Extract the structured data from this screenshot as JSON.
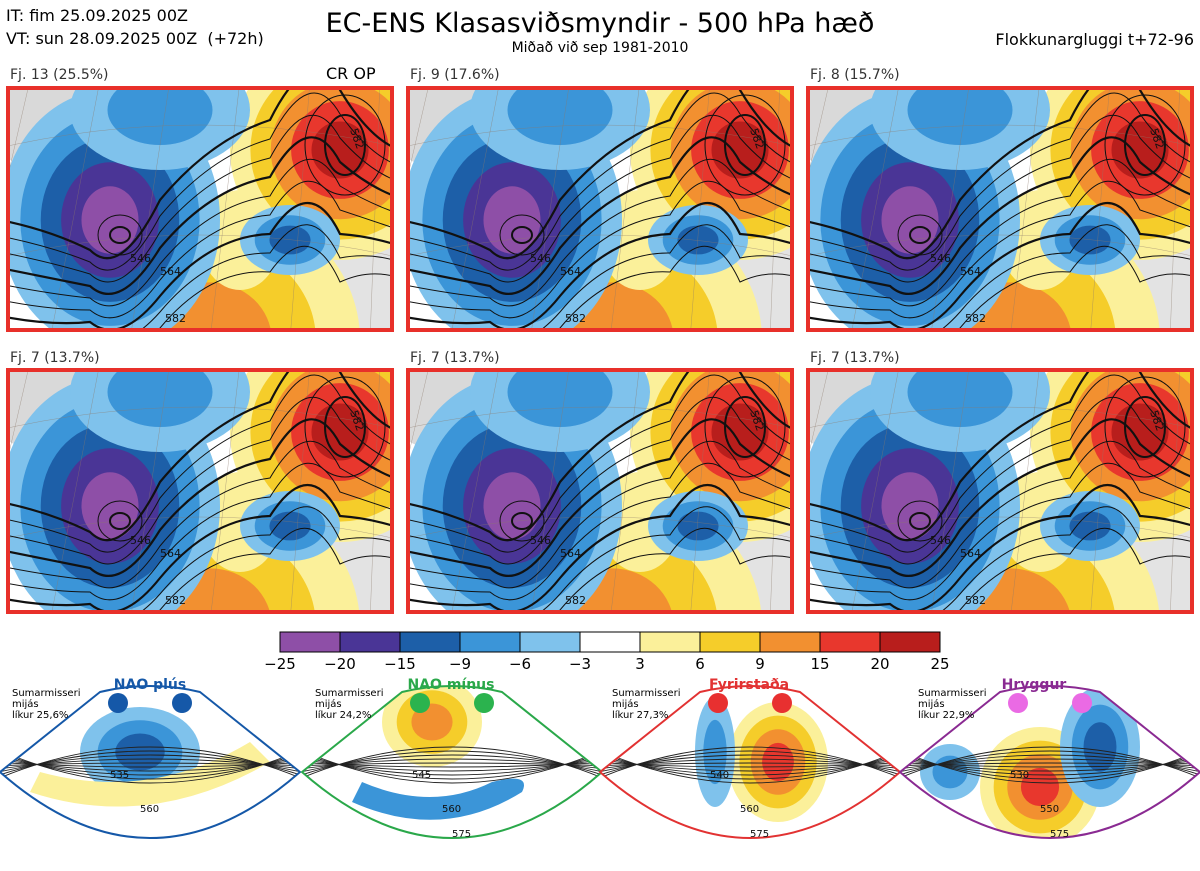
{
  "header": {
    "it_line": "IT: fim 25.09.2025 00Z",
    "vt_line": "VT: sun 28.09.2025 00Z  (+72h)",
    "title": "EC-ENS Klasasviðsmyndir - 500 hPa hæð",
    "subtitle": "Miðað við sep 1981-2010",
    "window": "Flokkunargluggi t+72-96"
  },
  "chart_data": {
    "type": "heatmap",
    "title": "EC-ENS Klasasviðsmyndir - 500 hPa hæð",
    "clusters": [
      {
        "label": "Fj. 13 (25.5%)",
        "members": 13,
        "percent": 25.5,
        "badge": "CR OP",
        "contours": [
          "546",
          "564",
          "582"
        ],
        "highs": [
          "582"
        ]
      },
      {
        "label": "Fj. 9 (17.6%)",
        "members": 9,
        "percent": 17.6,
        "badge": "",
        "contours": [
          "546",
          "564",
          "582"
        ],
        "highs": [
          "582"
        ]
      },
      {
        "label": "Fj. 8 (15.7%)",
        "members": 8,
        "percent": 15.7,
        "badge": "",
        "contours": [
          "546",
          "564",
          "582"
        ],
        "highs": [
          "582"
        ]
      },
      {
        "label": "Fj. 7 (13.7%)",
        "members": 7,
        "percent": 13.7,
        "badge": "",
        "contours": [
          "546",
          "564",
          "582"
        ],
        "highs": [
          "582"
        ]
      },
      {
        "label": "Fj. 7 (13.7%)",
        "members": 7,
        "percent": 13.7,
        "badge": "",
        "contours": [
          "546",
          "564",
          "582"
        ],
        "highs": [
          "582"
        ]
      },
      {
        "label": "Fj. 7 (13.7%)",
        "members": 7,
        "percent": 13.7,
        "badge": "",
        "contours": [
          "546",
          "564",
          "582"
        ],
        "highs": [
          "582"
        ]
      }
    ],
    "colorbar": {
      "ticks": [
        "−25",
        "−20",
        "−15",
        "−9",
        "−6",
        "−3",
        "3",
        "6",
        "9",
        "15",
        "20",
        "25"
      ],
      "colors": [
        "#8e4fa7",
        "#4a3596",
        "#1d5fa8",
        "#3b95d8",
        "#7fc2ec",
        "#ffffff",
        "#fbf09a",
        "#f5cd2a",
        "#f29030",
        "#e8372d",
        "#b81e1c"
      ]
    },
    "regimes": [
      {
        "name": "NAO plús",
        "note_line1": "Sumarmisseri",
        "note_line2": "mijás",
        "note_line3": "líkur 25,6%",
        "probability": 25.6,
        "color": "#1558a8",
        "dot_color": "#1558a8",
        "contours": [
          "535",
          "560"
        ]
      },
      {
        "name": "NAO mínus",
        "note_line1": "Sumarmisseri",
        "note_line2": "mijás",
        "note_line3": "líkur 24,2%",
        "probability": 24.2,
        "color": "#2aa84a",
        "dot_color": "#2bb34e",
        "contours": [
          "545",
          "560",
          "575"
        ]
      },
      {
        "name": "Fyrirstaða",
        "note_line1": "Sumarmisseri",
        "note_line2": "mijás",
        "note_line3": "líkur 27,3%",
        "probability": 27.3,
        "color": "#e23232",
        "dot_color": "#e83030",
        "contours": [
          "540",
          "560",
          "575"
        ]
      },
      {
        "name": "Hryggur",
        "note_line1": "Sumarmisseri",
        "note_line2": "mijás",
        "note_line3": "líkur 22,9%",
        "probability": 22.9,
        "color": "#8a2a92",
        "dot_color": "#ea6ae4",
        "contours": [
          "530",
          "550",
          "575"
        ]
      }
    ]
  }
}
